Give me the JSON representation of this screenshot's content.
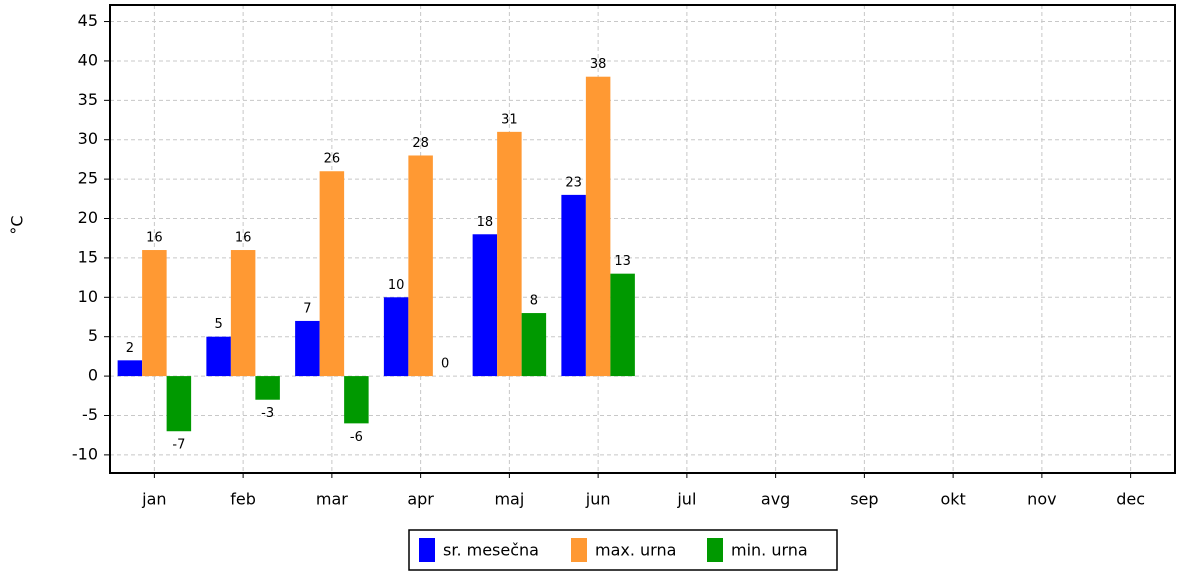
{
  "chart_data": {
    "type": "bar",
    "y_label": "°C",
    "categories": [
      "jan",
      "feb",
      "mar",
      "apr",
      "maj",
      "jun",
      "jul",
      "avg",
      "sep",
      "okt",
      "nov",
      "dec"
    ],
    "series": [
      {
        "name": "sr. mesečna",
        "color": "#0000ff",
        "values": [
          2,
          5,
          7,
          10,
          18,
          23,
          null,
          null,
          null,
          null,
          null,
          null
        ]
      },
      {
        "name": "max. urna",
        "color": "#ff9933",
        "values": [
          16,
          16,
          26,
          28,
          31,
          38,
          null,
          null,
          null,
          null,
          null,
          null
        ]
      },
      {
        "name": "min. urna",
        "color": "#009900",
        "values": [
          -7,
          -3,
          -6,
          0,
          8,
          13,
          null,
          null,
          null,
          null,
          null,
          null
        ]
      }
    ],
    "ylim": [
      -12.3,
      47.1
    ],
    "yticks": [
      -10,
      -5,
      0,
      5,
      10,
      15,
      20,
      25,
      30,
      35,
      40,
      45
    ],
    "grid": true,
    "legend": "bottom"
  }
}
